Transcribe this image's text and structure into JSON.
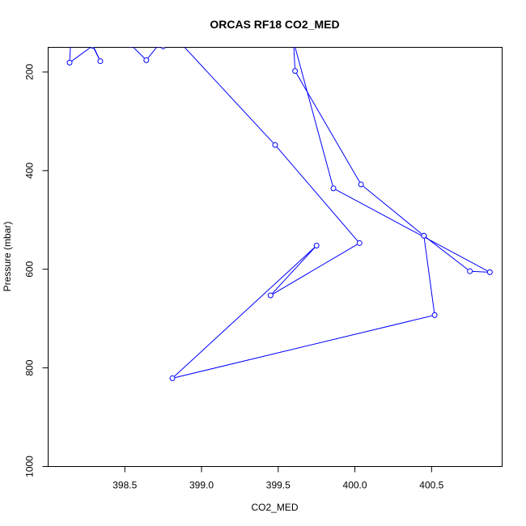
{
  "chart_data": {
    "type": "line",
    "title": "ORCAS RF18 CO2_MED",
    "xlabel": "CO2_MED",
    "ylabel": "Pressure (mbar)",
    "xlim": [
      398.0,
      400.96
    ],
    "ylim": [
      1000,
      150
    ],
    "y_reversed": true,
    "grid": false,
    "xticks": [
      398.5,
      399.0,
      399.5,
      400.0,
      400.5
    ],
    "xtick_labels": [
      "398.5",
      "399.0",
      "399.5",
      "400.0",
      "400.5"
    ],
    "yticks": [
      200,
      400,
      600,
      800,
      1000
    ],
    "ytick_labels": [
      "200",
      "400",
      "600",
      "800",
      "1000"
    ],
    "color": "#0000ff",
    "series": [
      {
        "points": [
          {
            "x": 398.15,
            "y": 121
          },
          {
            "x": 398.14,
            "y": 181
          },
          {
            "x": 398.29,
            "y": 147
          },
          {
            "x": 398.34,
            "y": 178
          },
          {
            "x": 398.28,
            "y": 138
          },
          {
            "x": 398.54,
            "y": 145
          },
          {
            "x": 398.64,
            "y": 176
          },
          {
            "x": 398.72,
            "y": 145
          },
          {
            "x": 398.75,
            "y": 148
          },
          {
            "x": 398.8,
            "y": 120
          },
          {
            "x": 399.48,
            "y": 348
          },
          {
            "x": 400.03,
            "y": 547
          },
          {
            "x": 399.45,
            "y": 653
          },
          {
            "x": 399.75,
            "y": 552
          },
          {
            "x": 398.81,
            "y": 821
          },
          {
            "x": 400.52,
            "y": 693
          },
          {
            "x": 400.45,
            "y": 532
          },
          {
            "x": 400.75,
            "y": 604
          },
          {
            "x": 400.88,
            "y": 606
          },
          {
            "x": 399.86,
            "y": 436
          },
          {
            "x": 399.6,
            "y": 138
          },
          {
            "x": 399.61,
            "y": 198
          },
          {
            "x": 400.04,
            "y": 428
          },
          {
            "x": 400.45,
            "y": 532
          }
        ]
      }
    ]
  }
}
